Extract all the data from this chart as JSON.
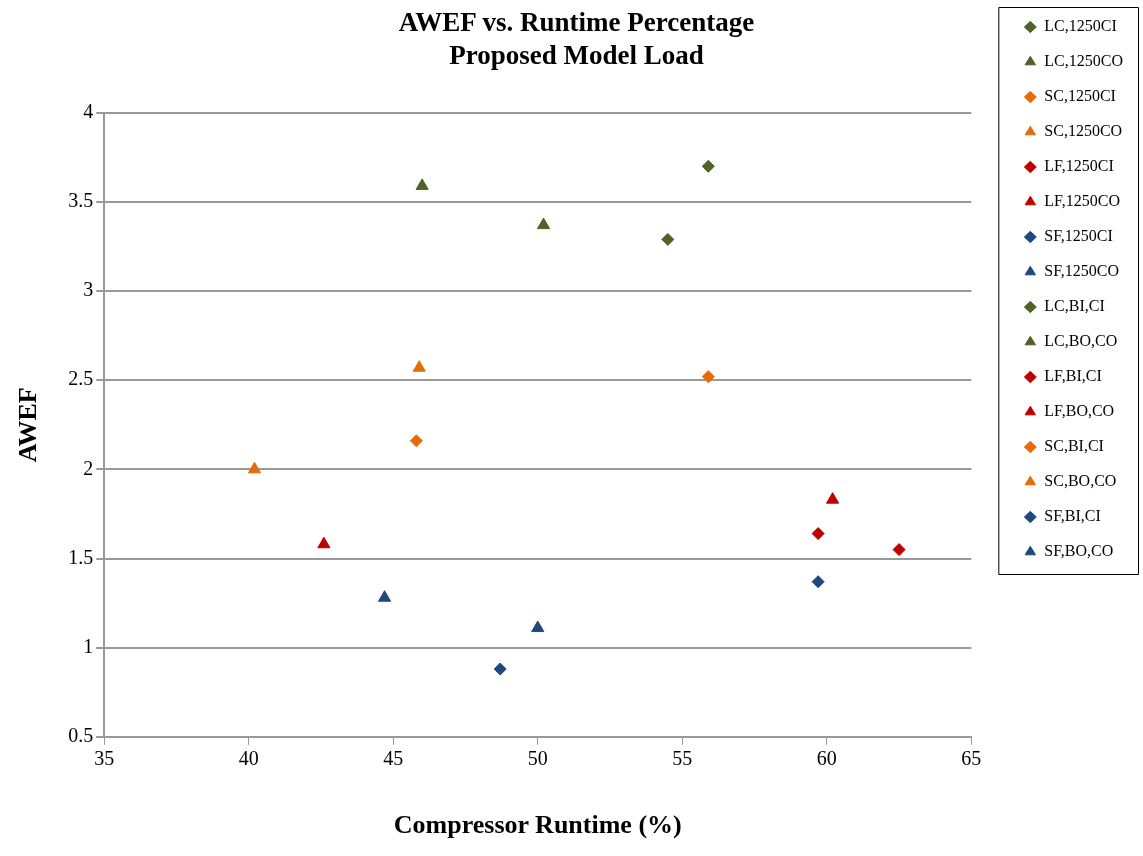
{
  "chart_data": {
    "type": "scatter",
    "title": "AWEF vs. Runtime Percentage\nProposed Model Load",
    "xlabel": "Compressor Runtime (%)",
    "ylabel": "AWEF",
    "xlim": [
      35,
      65
    ],
    "xticks": [
      35,
      40,
      45,
      50,
      55,
      60,
      65
    ],
    "ylim": [
      0.5,
      4
    ],
    "yticks": [
      0.5,
      1,
      1.5,
      2,
      2.5,
      3,
      3.5,
      4
    ],
    "grid": "y",
    "legend": "right",
    "series": [
      {
        "name": "LC,1250CI",
        "color": "#4f6228",
        "marker": "diamond",
        "x": [
          55.9
        ],
        "values": [
          3.7
        ]
      },
      {
        "name": "LC,1250CO",
        "color": "#4f6228",
        "marker": "triangle",
        "x": [
          46.0
        ],
        "values": [
          3.59
        ]
      },
      {
        "name": "SC,1250CI",
        "color": "#e46c0a",
        "marker": "diamond",
        "x": [
          55.9
        ],
        "values": [
          2.52
        ]
      },
      {
        "name": "SC,1250CO",
        "color": "#e46c0a",
        "marker": "triangle",
        "x": [
          45.9
        ],
        "values": [
          2.57
        ]
      },
      {
        "name": "LF,1250CI",
        "color": "#c00000",
        "marker": "diamond",
        "x": [
          59.7
        ],
        "values": [
          1.64
        ]
      },
      {
        "name": "LF,1250CO",
        "color": "#c00000",
        "marker": "triangle",
        "x": [
          42.6
        ],
        "values": [
          1.58
        ]
      },
      {
        "name": "SF,1250CI",
        "color": "#1f497d",
        "marker": "diamond",
        "x": [
          59.7
        ],
        "values": [
          1.37
        ]
      },
      {
        "name": "SF,1250CO",
        "color": "#1f497d",
        "marker": "triangle",
        "x": [
          44.7
        ],
        "values": [
          1.28
        ]
      },
      {
        "name": "LC,BI,CI",
        "color": "#4f6228",
        "marker": "diamond",
        "x": [
          54.5
        ],
        "values": [
          3.29
        ]
      },
      {
        "name": "LC,BO,CO",
        "color": "#4f6228",
        "marker": "triangle",
        "x": [
          50.2
        ],
        "values": [
          3.37
        ]
      },
      {
        "name": "LF,BI,CI",
        "color": "#c00000",
        "marker": "diamond",
        "x": [
          62.5
        ],
        "values": [
          1.55
        ]
      },
      {
        "name": "LF,BO,CO",
        "color": "#c00000",
        "marker": "triangle",
        "x": [
          60.2
        ],
        "values": [
          1.83
        ]
      },
      {
        "name": "SC,BI,CI",
        "color": "#e46c0a",
        "marker": "diamond",
        "x": [
          45.8
        ],
        "values": [
          2.16
        ]
      },
      {
        "name": "SC,BO,CO",
        "color": "#e46c0a",
        "marker": "triangle",
        "x": [
          40.2
        ],
        "values": [
          2.0
        ]
      },
      {
        "name": "SF,BI,CI",
        "color": "#1f497d",
        "marker": "diamond",
        "x": [
          48.7
        ],
        "values": [
          0.88
        ]
      },
      {
        "name": "SF,BO,CO",
        "color": "#1f497d",
        "marker": "triangle",
        "x": [
          50.0
        ],
        "values": [
          1.11
        ]
      }
    ]
  }
}
